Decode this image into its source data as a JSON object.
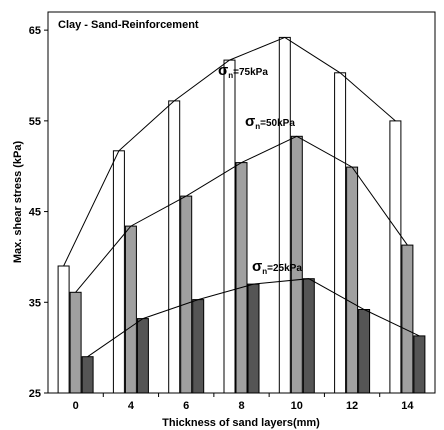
{
  "chart_data": {
    "type": "bar",
    "title": "Clay - Sand-Reinforcement",
    "xlabel": "Thickness of sand layers(mm)",
    "ylabel": "Max. shear stress (kPa)",
    "categories": [
      "0",
      "4",
      "6",
      "8",
      "10",
      "12",
      "14"
    ],
    "ylim": [
      25,
      67
    ],
    "yticks": [
      25,
      35,
      45,
      55,
      65
    ],
    "grid": false,
    "series": [
      {
        "name_symbol": "σ",
        "name_sub": "n",
        "name_rest": "=75kPa",
        "values": [
          39,
          51.7,
          57.2,
          61.7,
          64.2,
          60.3,
          55.0
        ],
        "color": "#ffffff"
      },
      {
        "name_symbol": "σ",
        "name_sub": "n",
        "name_rest": "=50kPa",
        "values": [
          36.1,
          43.4,
          46.7,
          50.4,
          53.3,
          49.9,
          41.3
        ],
        "color": "#a0a0a0"
      },
      {
        "name_symbol": "σ",
        "name_sub": "n",
        "name_rest": "=25kPa",
        "values": [
          29.0,
          33.2,
          35.3,
          37.0,
          37.6,
          34.2,
          31.3
        ],
        "color": "#555555"
      }
    ]
  }
}
